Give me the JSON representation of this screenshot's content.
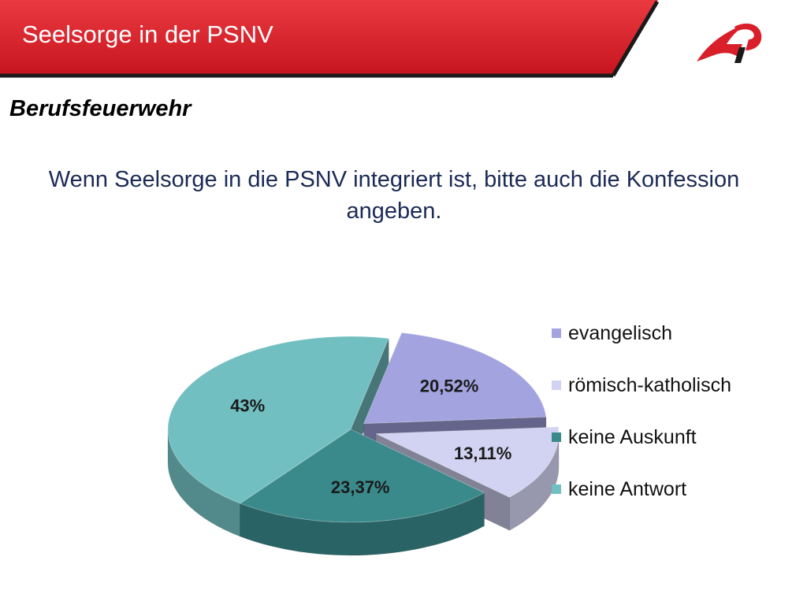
{
  "header": {
    "title": "Seelsorge in der PSNV",
    "bar_color": "#d81f2a",
    "logo_icon": "flame-logo-icon"
  },
  "subtitle": "Berufsfeuerwehr",
  "question": "Wenn Seelsorge in die PSNV integriert ist, bitte auch die Konfession angeben.",
  "chart_data": {
    "type": "pie",
    "style": "3d-exploded",
    "categories": [
      "evangelisch",
      "römisch-katholisch",
      "keine Auskunft",
      "keine Antwort"
    ],
    "values": [
      20.52,
      13.11,
      23.37,
      43
    ],
    "labels": [
      "20,52%",
      "13,11%",
      "23,37%",
      "43%"
    ],
    "colors": [
      "#a3a3e0",
      "#d2d2f2",
      "#3a8a8c",
      "#72bfc1"
    ],
    "legend_position": "right"
  }
}
